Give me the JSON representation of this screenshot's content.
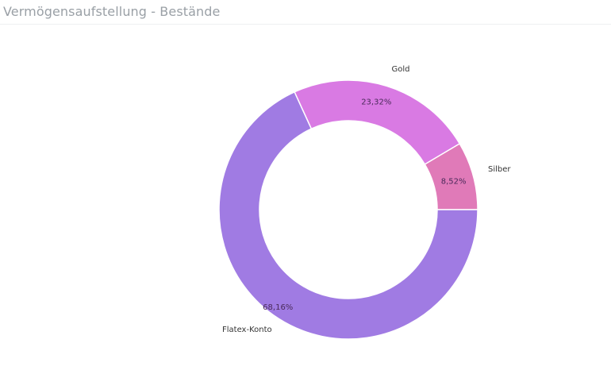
{
  "header": {
    "title": "Vermögensaufstellung - Bestände"
  },
  "chart_data": {
    "type": "pie",
    "variant": "donut",
    "title": "Vermögensaufstellung - Bestände",
    "slices": [
      {
        "label": "Silber",
        "value": 8.52,
        "value_label": "8,52%",
        "color": "#e07ab8"
      },
      {
        "label": "Gold",
        "value": 23.32,
        "value_label": "23,32%",
        "color": "#d97ae3"
      },
      {
        "label": "Flatex-Konto",
        "value": 68.16,
        "value_label": "68,16%",
        "color": "#a07be3"
      }
    ],
    "legend": "none"
  }
}
